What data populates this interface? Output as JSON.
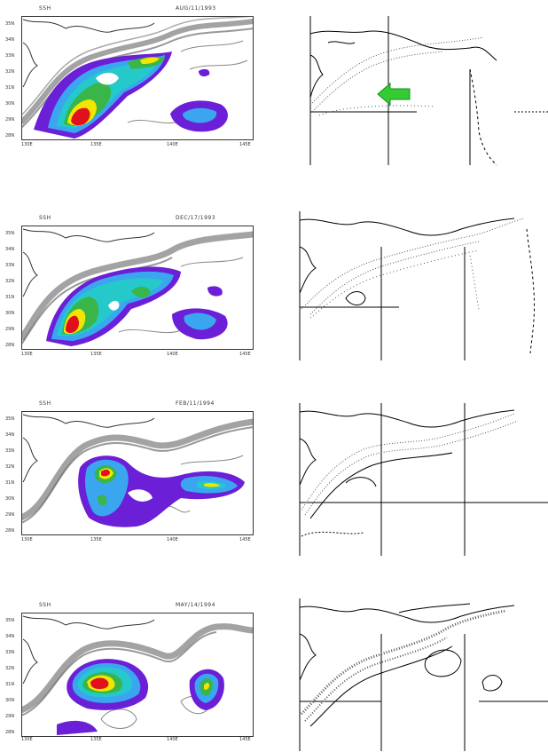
{
  "figure": {
    "left_panels": [
      {
        "label": "SSH",
        "date": "AUG/11/1993",
        "y_ticks": [
          "35N",
          "34N",
          "33N",
          "32N",
          "31N",
          "30N",
          "29N",
          "28N"
        ],
        "x_ticks": [
          "130E",
          "135E",
          "140E",
          "145E"
        ]
      },
      {
        "label": "SSH",
        "date": "DEC/17/1993",
        "y_ticks": [
          "35N",
          "34N",
          "33N",
          "32N",
          "31N",
          "30N",
          "29N",
          "28N"
        ],
        "x_ticks": [
          "130E",
          "135E",
          "140E",
          "145E"
        ]
      },
      {
        "label": "SSH",
        "date": "FEB/11/1994",
        "y_ticks": [
          "35N",
          "34N",
          "33N",
          "32N",
          "31N",
          "30N",
          "29N",
          "28N"
        ],
        "x_ticks": [
          "130E",
          "135E",
          "140E",
          "145E"
        ]
      },
      {
        "label": "SSH",
        "date": "MAY/14/1994",
        "y_ticks": [
          "35N",
          "34N",
          "33N",
          "32N",
          "31N",
          "30N",
          "29N",
          "28N"
        ],
        "x_ticks": [
          "130E",
          "135E",
          "140E",
          "145E"
        ]
      }
    ],
    "colors": {
      "purple": "#6b1fd6",
      "blue": "#3aa6f0",
      "cyan": "#26c9c9",
      "green": "#39b54a",
      "yellow": "#f2e600",
      "red": "#e0101c",
      "arrow": "#33cc33",
      "contour": "#555555"
    }
  }
}
